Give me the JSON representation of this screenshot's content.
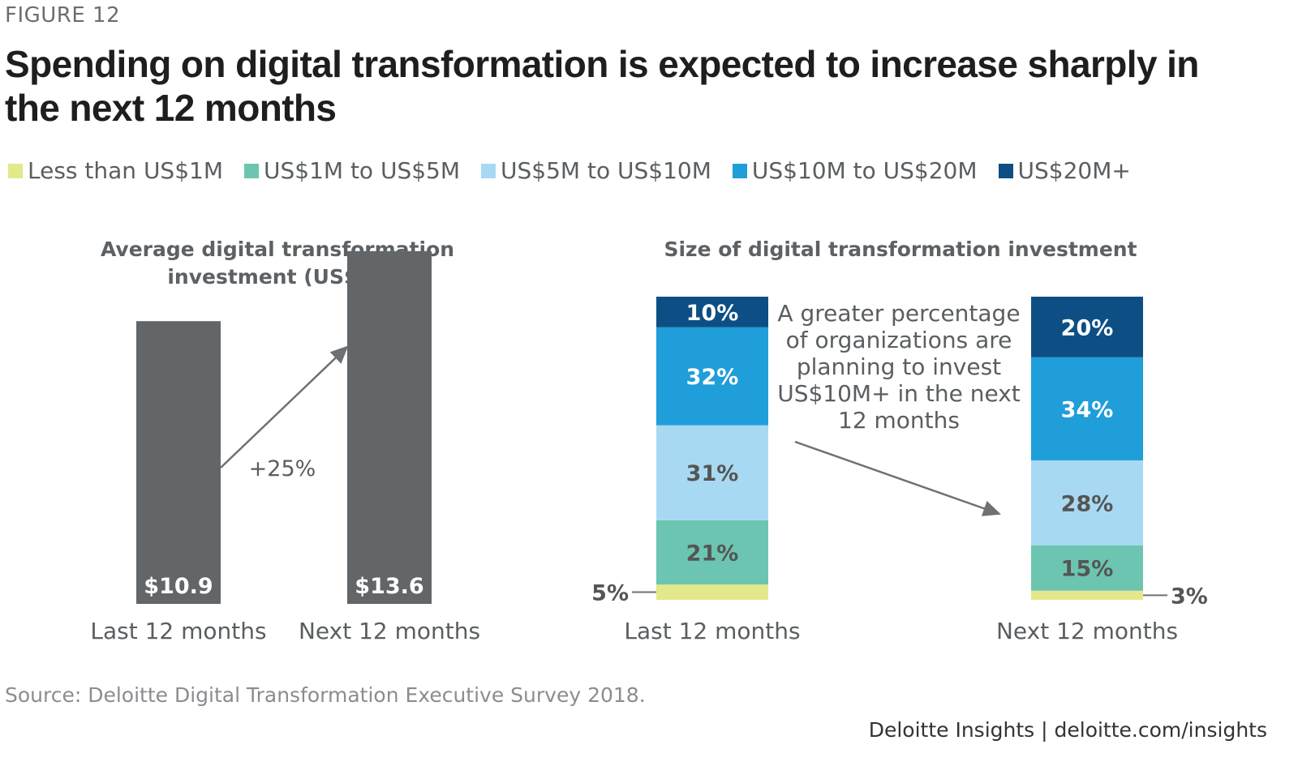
{
  "figure_label": "FIGURE 12",
  "title": "Spending on digital transformation is expected to increase sharply in the next 12 months",
  "legend": [
    {
      "label": "Less than US$1M",
      "color": "#e3e88a"
    },
    {
      "label": "US$1M to US$5M",
      "color": "#6cc5b0"
    },
    {
      "label": "US$5M to US$10M",
      "color": "#a8d9f3"
    },
    {
      "label": "US$10M to US$20M",
      "color": "#1f9ed9"
    },
    {
      "label": "US$20M+",
      "color": "#0d4f84"
    }
  ],
  "chart_data": [
    {
      "type": "bar",
      "title_line1": "Average digital transformation",
      "title_line2": "investment (US$M)",
      "categories": [
        "Last 12 months",
        "Next 12 months"
      ],
      "values": [
        10.9,
        13.6
      ],
      "value_labels": [
        "$10.9",
        "$13.6"
      ],
      "bar_color": "#626669",
      "annotation": "+25%"
    },
    {
      "type": "bar",
      "stacked": true,
      "percent": true,
      "title": "Size of digital transformation investment",
      "categories": [
        "Last 12 months",
        "Next 12 months"
      ],
      "series": [
        {
          "name": "Less than US$1M",
          "values": [
            5,
            3
          ],
          "labels": [
            "5%",
            "3%"
          ]
        },
        {
          "name": "US$1M to US$5M",
          "values": [
            21,
            15
          ],
          "labels": [
            "21%",
            "15%"
          ]
        },
        {
          "name": "US$5M to US$10M",
          "values": [
            31,
            28
          ],
          "labels": [
            "31%",
            "28%"
          ]
        },
        {
          "name": "US$10M to US$20M",
          "values": [
            32,
            34
          ],
          "labels": [
            "32%",
            "34%"
          ]
        },
        {
          "name": "US$20M+",
          "values": [
            10,
            20
          ],
          "labels": [
            "10%",
            "20%"
          ]
        }
      ],
      "annotation_lines": [
        "A greater percentage",
        "of organizations are",
        "planning to invest",
        "US$10M+ in the next",
        "12 months"
      ]
    }
  ],
  "source": "Source: Deloitte Digital Transformation Executive Survey 2018.",
  "footer": "Deloitte Insights | deloitte.com/insights"
}
